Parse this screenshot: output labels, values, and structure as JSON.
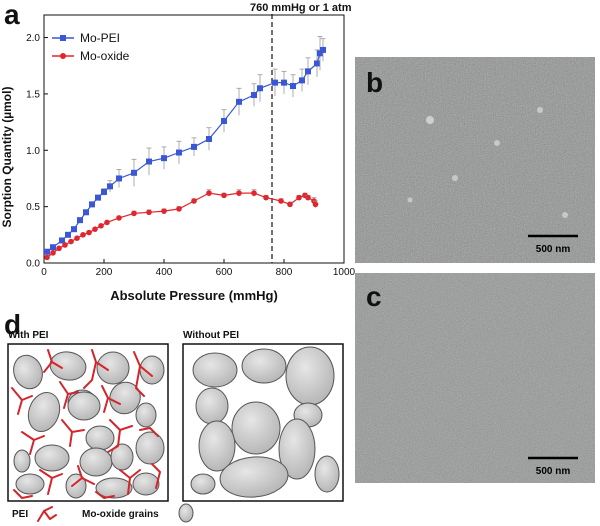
{
  "panels": {
    "a": "a",
    "b": "b",
    "c": "c",
    "d": "d"
  },
  "chart_data": {
    "type": "line",
    "title": "",
    "xlabel": "Absolute Pressure (mmHg)",
    "ylabel": "Sorption Quantity (µmol)",
    "xlim": [
      0,
      1000
    ],
    "ylim": [
      0,
      2.2
    ],
    "xticks": [
      0,
      200,
      400,
      600,
      800,
      1000
    ],
    "yticks": [
      0.0,
      0.5,
      1.0,
      1.5,
      2.0
    ],
    "ytick_labels": [
      "0.0",
      "0.5",
      "1.0",
      "1.5",
      "2.0"
    ],
    "legend_position": "top-left",
    "annotation": {
      "x": 760,
      "label": "760 mmHg or 1 atm"
    },
    "series": [
      {
        "name": "Mo-PEI",
        "color": "#3a57d6",
        "marker": "square",
        "points": [
          [
            10,
            0.1
          ],
          [
            30,
            0.14
          ],
          [
            60,
            0.2
          ],
          [
            80,
            0.25
          ],
          [
            100,
            0.3
          ],
          [
            120,
            0.38
          ],
          [
            140,
            0.45
          ],
          [
            160,
            0.52
          ],
          [
            180,
            0.58
          ],
          [
            200,
            0.63
          ],
          [
            220,
            0.68
          ],
          [
            250,
            0.75
          ],
          [
            300,
            0.8
          ],
          [
            350,
            0.9
          ],
          [
            400,
            0.93
          ],
          [
            450,
            0.98
          ],
          [
            500,
            1.03
          ],
          [
            550,
            1.1
          ],
          [
            600,
            1.26
          ],
          [
            650,
            1.43
          ],
          [
            700,
            1.49
          ],
          [
            720,
            1.55
          ],
          [
            770,
            1.6
          ],
          [
            800,
            1.6
          ],
          [
            830,
            1.57
          ],
          [
            860,
            1.62
          ],
          [
            880,
            1.7
          ],
          [
            910,
            1.77
          ],
          [
            920,
            1.86
          ],
          [
            930,
            1.89
          ]
        ],
        "errors": [
          0.01,
          0.01,
          0.01,
          0.01,
          0.01,
          0.01,
          0.02,
          0.02,
          0.02,
          0.03,
          0.05,
          0.08,
          0.12,
          0.12,
          0.1,
          0.1,
          0.08,
          0.1,
          0.1,
          0.12,
          0.1,
          0.12,
          0.12,
          0.1,
          0.1,
          0.1,
          0.12,
          0.12,
          0.15,
          0.1
        ]
      },
      {
        "name": "Mo-oxide",
        "color": "#e0262e",
        "marker": "circle",
        "points": [
          [
            10,
            0.05
          ],
          [
            30,
            0.09
          ],
          [
            50,
            0.13
          ],
          [
            70,
            0.16
          ],
          [
            90,
            0.19
          ],
          [
            110,
            0.22
          ],
          [
            130,
            0.25
          ],
          [
            150,
            0.27
          ],
          [
            170,
            0.3
          ],
          [
            190,
            0.33
          ],
          [
            210,
            0.36
          ],
          [
            250,
            0.4
          ],
          [
            300,
            0.44
          ],
          [
            350,
            0.45
          ],
          [
            400,
            0.46
          ],
          [
            450,
            0.48
          ],
          [
            500,
            0.55
          ],
          [
            550,
            0.62
          ],
          [
            600,
            0.6
          ],
          [
            650,
            0.62
          ],
          [
            700,
            0.62
          ],
          [
            740,
            0.58
          ],
          [
            790,
            0.55
          ],
          [
            820,
            0.52
          ],
          [
            850,
            0.58
          ],
          [
            870,
            0.6
          ],
          [
            880,
            0.58
          ],
          [
            900,
            0.55
          ],
          [
            905,
            0.52
          ]
        ],
        "errors": [
          0.0,
          0.0,
          0.0,
          0.0,
          0.0,
          0.0,
          0.0,
          0.0,
          0.0,
          0.0,
          0.01,
          0.01,
          0.02,
          0.02,
          0.02,
          0.02,
          0.02,
          0.03,
          0.02,
          0.03,
          0.03,
          0.02,
          0.02,
          0.02,
          0.02,
          0.02,
          0.02,
          0.03,
          0.03
        ]
      }
    ]
  },
  "micrographs": {
    "b": {
      "scalebar": "500 nm"
    },
    "c": {
      "scalebar": "500 nm"
    }
  },
  "schematic": {
    "with_label": "With PEI",
    "without_label": "Without PEI",
    "legend_pei": "PEI",
    "legend_grains": "Mo-oxide grains",
    "pei_color": "#d4252b",
    "grain_fill": "#c8c8c8"
  }
}
